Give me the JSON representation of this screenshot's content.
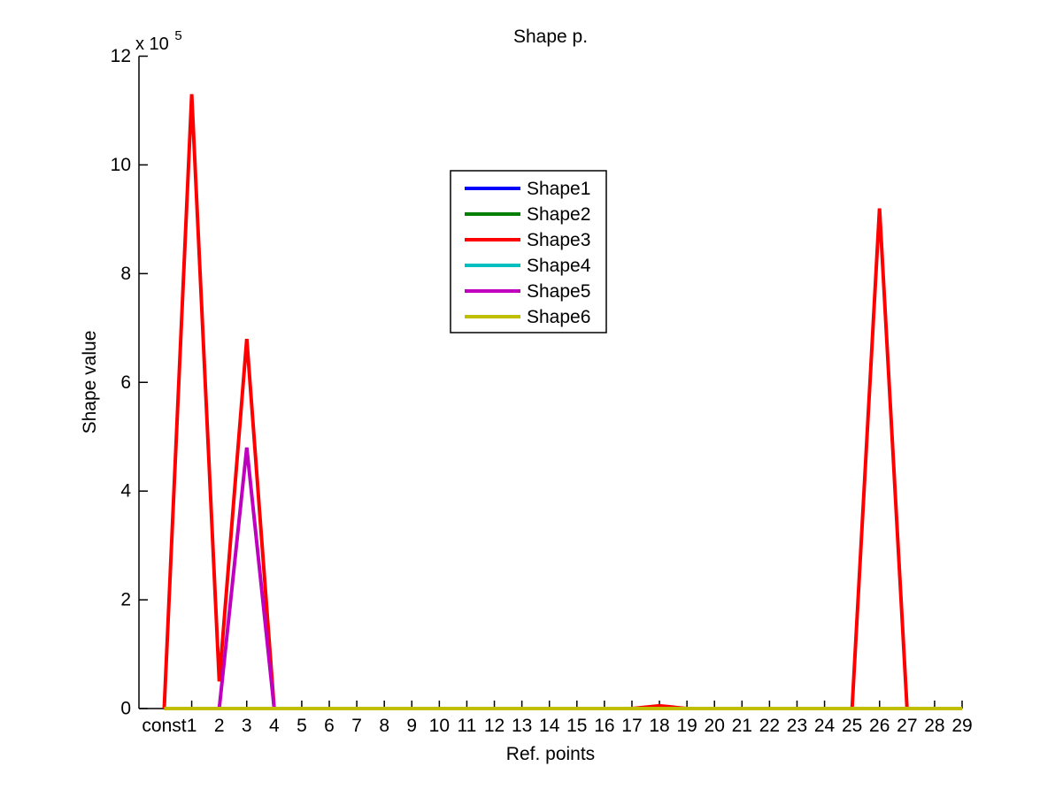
{
  "figure": {
    "background_color": "#ffffff",
    "axis_color": "#000000"
  },
  "chart_data": {
    "type": "line",
    "title": "Shape p.",
    "xlabel": "Ref. points",
    "ylabel": "Shape value",
    "y_multiplier_base": "x 10",
    "y_multiplier_exp": "5",
    "grid": false,
    "legend_position": "upper-center-left",
    "legend_border": true,
    "ylim": [
      0,
      1200000
    ],
    "y_ticks": [
      0,
      2,
      4,
      6,
      8,
      10,
      12
    ],
    "y_tick_labels": [
      "0",
      "2",
      "4",
      "6",
      "8",
      "10",
      "12"
    ],
    "categories": [
      "const",
      "1",
      "2",
      "3",
      "4",
      "5",
      "6",
      "7",
      "8",
      "9",
      "10",
      "11",
      "12",
      "13",
      "14",
      "15",
      "16",
      "17",
      "18",
      "19",
      "20",
      "21",
      "22",
      "23",
      "24",
      "25",
      "26",
      "27",
      "28",
      "29"
    ],
    "series": [
      {
        "name": "Shape1",
        "color": "#0000ff",
        "values": [
          0,
          0,
          0,
          0,
          0,
          0,
          0,
          0,
          0,
          0,
          0,
          0,
          0,
          0,
          0,
          0,
          0,
          0,
          0,
          0,
          0,
          0,
          0,
          0,
          0,
          0,
          0,
          0,
          0,
          0
        ]
      },
      {
        "name": "Shape2",
        "color": "#007f00",
        "values": [
          0,
          0,
          0,
          0,
          0,
          0,
          0,
          0,
          0,
          0,
          0,
          0,
          0,
          0,
          0,
          0,
          0,
          0,
          0,
          0,
          0,
          0,
          0,
          0,
          0,
          0,
          0,
          0,
          0,
          0
        ]
      },
      {
        "name": "Shape3",
        "color": "#ff0000",
        "values": [
          0,
          1130000,
          50000,
          680000,
          0,
          0,
          0,
          0,
          0,
          0,
          0,
          0,
          0,
          0,
          0,
          0,
          0,
          0,
          5000,
          0,
          0,
          0,
          0,
          0,
          0,
          0,
          920000,
          0,
          0,
          0
        ]
      },
      {
        "name": "Shape4",
        "color": "#00bfbf",
        "values": [
          0,
          0,
          0,
          0,
          0,
          0,
          0,
          0,
          0,
          0,
          0,
          0,
          0,
          0,
          0,
          0,
          0,
          0,
          0,
          0,
          0,
          0,
          0,
          0,
          0,
          0,
          0,
          0,
          0,
          0
        ]
      },
      {
        "name": "Shape5",
        "color": "#bf00bf",
        "values": [
          0,
          0,
          0,
          480000,
          0,
          0,
          0,
          0,
          0,
          0,
          0,
          0,
          0,
          0,
          0,
          0,
          0,
          0,
          0,
          0,
          0,
          0,
          0,
          0,
          0,
          0,
          0,
          0,
          0,
          0
        ]
      },
      {
        "name": "Shape6",
        "color": "#bfbf00",
        "values": [
          0,
          0,
          0,
          0,
          0,
          0,
          0,
          0,
          0,
          0,
          0,
          0,
          0,
          0,
          0,
          0,
          0,
          0,
          0,
          0,
          0,
          0,
          0,
          0,
          0,
          0,
          0,
          0,
          0,
          0
        ]
      }
    ]
  }
}
